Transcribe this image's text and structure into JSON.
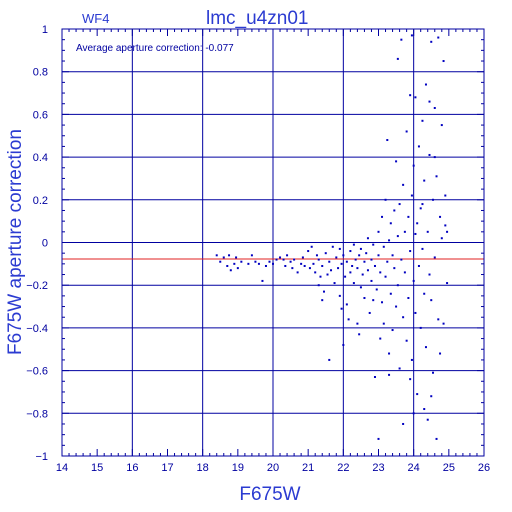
{
  "chart_data": {
    "type": "scatter",
    "title": "lmc_u4zn01",
    "chip_label": "WF4",
    "annotation": "Average aperture correction:  -0.077",
    "xlabel": "F675W",
    "ylabel": "F675W aperture correction",
    "xlim": [
      14,
      26
    ],
    "ylim": [
      -1,
      1
    ],
    "x_ticks": [
      14,
      15,
      16,
      17,
      18,
      19,
      20,
      21,
      22,
      23,
      24,
      25,
      26
    ],
    "y_ticks": [
      -1,
      -0.8,
      -0.6,
      -0.4,
      -0.2,
      0,
      0.2,
      0.4,
      0.6,
      0.8,
      1
    ],
    "y_tick_labels": [
      "−1",
      "−0.8",
      "−0.6",
      "−0.4",
      "−0.2",
      "0",
      "0.2",
      "0.4",
      "0.6",
      "0.8",
      "1"
    ],
    "grid": true,
    "reference_line": {
      "y": -0.077,
      "color": "#e02020"
    },
    "point_color": "#0000c0",
    "points": [
      [
        18.4,
        -0.06
      ],
      [
        18.5,
        -0.09
      ],
      [
        18.6,
        -0.07
      ],
      [
        18.7,
        -0.11
      ],
      [
        18.75,
        -0.06
      ],
      [
        18.8,
        -0.13
      ],
      [
        18.9,
        -0.1
      ],
      [
        18.95,
        -0.07
      ],
      [
        19.0,
        -0.12
      ],
      [
        19.1,
        -0.09
      ],
      [
        19.3,
        -0.1
      ],
      [
        19.4,
        -0.06
      ],
      [
        19.5,
        -0.09
      ],
      [
        19.6,
        -0.1
      ],
      [
        19.7,
        -0.18
      ],
      [
        19.8,
        -0.11
      ],
      [
        19.9,
        -0.09
      ],
      [
        20.0,
        -0.1
      ],
      [
        20.1,
        -0.08
      ],
      [
        20.2,
        -0.07
      ],
      [
        20.3,
        -0.08
      ],
      [
        20.35,
        -0.11
      ],
      [
        20.4,
        -0.06
      ],
      [
        20.5,
        -0.09
      ],
      [
        20.55,
        -0.12
      ],
      [
        20.6,
        -0.08
      ],
      [
        20.7,
        -0.14
      ],
      [
        20.8,
        -0.1
      ],
      [
        20.85,
        -0.07
      ],
      [
        20.9,
        -0.11
      ],
      [
        21.0,
        -0.04
      ],
      [
        21.05,
        -0.12
      ],
      [
        21.1,
        -0.02
      ],
      [
        21.15,
        -0.1
      ],
      [
        21.2,
        -0.14
      ],
      [
        21.25,
        -0.06
      ],
      [
        21.3,
        -0.2
      ],
      [
        21.3,
        -0.08
      ],
      [
        21.35,
        -0.16
      ],
      [
        21.4,
        -0.11
      ],
      [
        21.45,
        -0.23
      ],
      [
        21.5,
        -0.05
      ],
      [
        21.55,
        -0.15
      ],
      [
        21.6,
        -0.09
      ],
      [
        21.6,
        -0.55
      ],
      [
        21.65,
        -0.13
      ],
      [
        21.7,
        -0.02
      ],
      [
        21.75,
        -0.19
      ],
      [
        21.8,
        -0.07
      ],
      [
        21.85,
        -0.12
      ],
      [
        21.9,
        -0.03
      ],
      [
        21.9,
        -0.25
      ],
      [
        21.95,
        -0.1
      ],
      [
        22.0,
        -0.06
      ],
      [
        22.0,
        -0.48
      ],
      [
        22.05,
        -0.16
      ],
      [
        22.1,
        -0.09
      ],
      [
        22.1,
        -0.29
      ],
      [
        22.15,
        -0.36
      ],
      [
        22.2,
        -0.04
      ],
      [
        22.2,
        -0.14
      ],
      [
        22.25,
        -0.11
      ],
      [
        22.3,
        -0.01
      ],
      [
        22.3,
        -0.19
      ],
      [
        22.35,
        -0.08
      ],
      [
        22.4,
        -0.38
      ],
      [
        22.4,
        -0.12
      ],
      [
        22.45,
        -0.06
      ],
      [
        22.5,
        -0.21
      ],
      [
        22.5,
        -0.03
      ],
      [
        22.55,
        -0.15
      ],
      [
        22.6,
        -0.09
      ],
      [
        22.6,
        -0.26
      ],
      [
        22.65,
        -0.05
      ],
      [
        22.7,
        0.02
      ],
      [
        22.7,
        -0.13
      ],
      [
        22.75,
        -0.33
      ],
      [
        22.8,
        -0.08
      ],
      [
        22.8,
        -0.18
      ],
      [
        22.85,
        -0.01
      ],
      [
        22.9,
        -0.11
      ],
      [
        22.9,
        -0.63
      ],
      [
        22.95,
        -0.22
      ],
      [
        23.0,
        0.05
      ],
      [
        23.0,
        -0.06
      ],
      [
        23.0,
        -0.92
      ],
      [
        23.05,
        -0.14
      ],
      [
        23.05,
        -0.45
      ],
      [
        23.1,
        0.12
      ],
      [
        23.1,
        -0.28
      ],
      [
        23.15,
        -0.02
      ],
      [
        23.15,
        -0.38
      ],
      [
        23.2,
        0.2
      ],
      [
        23.2,
        -0.16
      ],
      [
        23.25,
        0.48
      ],
      [
        23.25,
        -0.09
      ],
      [
        23.3,
        0.01
      ],
      [
        23.3,
        -0.52
      ],
      [
        23.35,
        0.09
      ],
      [
        23.35,
        -0.24
      ],
      [
        23.4,
        -0.06
      ],
      [
        23.4,
        -0.41
      ],
      [
        23.45,
        0.15
      ],
      [
        23.45,
        -0.12
      ],
      [
        23.5,
        0.38
      ],
      [
        23.5,
        -0.3
      ],
      [
        23.55,
        0.03
      ],
      [
        23.55,
        -0.2
      ],
      [
        23.6,
        0.18
      ],
      [
        23.6,
        -0.59
      ],
      [
        23.65,
        -0.08
      ],
      [
        23.65,
        0.95
      ],
      [
        23.7,
        0.27
      ],
      [
        23.7,
        -0.35
      ],
      [
        23.75,
        0.05
      ],
      [
        23.75,
        -0.14
      ],
      [
        23.8,
        0.52
      ],
      [
        23.8,
        -0.46
      ],
      [
        23.85,
        0.12
      ],
      [
        23.85,
        -0.26
      ],
      [
        23.9,
        0.69
      ],
      [
        23.9,
        -0.04
      ],
      [
        23.95,
        0.22
      ],
      [
        23.95,
        -0.55
      ],
      [
        24.0,
        0.36
      ],
      [
        24.0,
        -0.18
      ],
      [
        24.05,
        0.68
      ],
      [
        24.05,
        -0.33
      ],
      [
        24.1,
        0.09
      ],
      [
        24.1,
        -0.71
      ],
      [
        24.15,
        0.45
      ],
      [
        24.15,
        -0.11
      ],
      [
        24.2,
        0.16
      ],
      [
        24.2,
        -0.4
      ],
      [
        24.25,
        0.57
      ],
      [
        24.25,
        -0.03
      ],
      [
        24.3,
        0.29
      ],
      [
        24.3,
        -0.24
      ],
      [
        24.35,
        0.74
      ],
      [
        24.35,
        -0.49
      ],
      [
        24.4,
        0.05
      ],
      [
        24.4,
        -0.83
      ],
      [
        24.45,
        0.41
      ],
      [
        24.45,
        -0.15
      ],
      [
        24.5,
        0.94
      ],
      [
        24.5,
        -0.27
      ],
      [
        24.55,
        0.2
      ],
      [
        24.55,
        -0.61
      ],
      [
        24.6,
        0.63
      ],
      [
        24.6,
        -0.07
      ],
      [
        24.65,
        0.31
      ],
      [
        24.65,
        -0.92
      ],
      [
        24.7,
        0.96
      ],
      [
        24.7,
        -0.36
      ],
      [
        24.75,
        0.12
      ],
      [
        24.75,
        -0.52
      ],
      [
        24.8,
        0.55
      ],
      [
        24.8,
        0.02
      ],
      [
        24.85,
        0.85
      ],
      [
        24.85,
        -0.38
      ],
      [
        24.9,
        0.08
      ],
      [
        24.9,
        0.22
      ],
      [
        24.95,
        0.05
      ],
      [
        24.95,
        -0.19
      ],
      [
        24.5,
        -0.72
      ],
      [
        24.3,
        -0.78
      ],
      [
        24.0,
        -0.8
      ],
      [
        23.9,
        -0.64
      ],
      [
        23.7,
        -0.85
      ],
      [
        23.3,
        -0.62
      ],
      [
        22.85,
        -0.27
      ],
      [
        22.45,
        -0.43
      ],
      [
        21.95,
        -0.31
      ],
      [
        21.4,
        -0.27
      ],
      [
        23.55,
        0.86
      ],
      [
        23.95,
        0.97
      ],
      [
        24.05,
        0.04
      ],
      [
        24.25,
        0.18
      ],
      [
        24.45,
        0.66
      ],
      [
        24.6,
        0.4
      ]
    ]
  }
}
